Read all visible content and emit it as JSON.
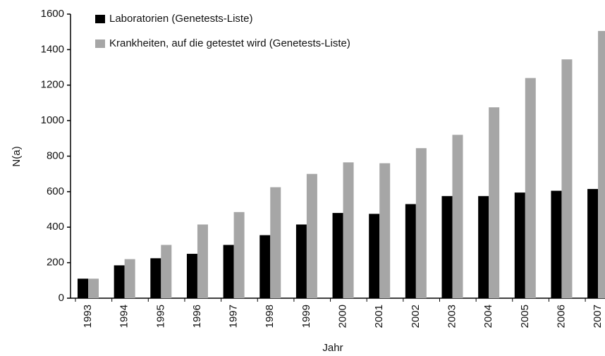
{
  "chart_data": {
    "type": "bar",
    "x_label": "Jahr",
    "y_label": "N(a)",
    "categories": [
      "1993",
      "1994",
      "1995",
      "1996",
      "1997",
      "1998",
      "1999",
      "2000",
      "2001",
      "2002",
      "2003",
      "2004",
      "2005",
      "2006",
      "2007"
    ],
    "series": [
      {
        "name": "Laboratorien (Genetests-Liste)",
        "color": "#000000",
        "values": [
          110,
          185,
          225,
          250,
          300,
          355,
          415,
          480,
          475,
          530,
          575,
          575,
          595,
          605,
          615
        ]
      },
      {
        "name": "Krankheiten, auf die getestet wird (Genetests-Liste)",
        "color": "#a6a6a6",
        "values": [
          110,
          220,
          300,
          415,
          485,
          625,
          700,
          765,
          760,
          845,
          920,
          1075,
          1240,
          1345,
          1505
        ]
      }
    ],
    "ylim": [
      0,
      1600
    ],
    "yticks": [
      0,
      200,
      400,
      600,
      800,
      1000,
      1200,
      1400,
      1600
    ],
    "legend": "upper left",
    "grid": false
  }
}
